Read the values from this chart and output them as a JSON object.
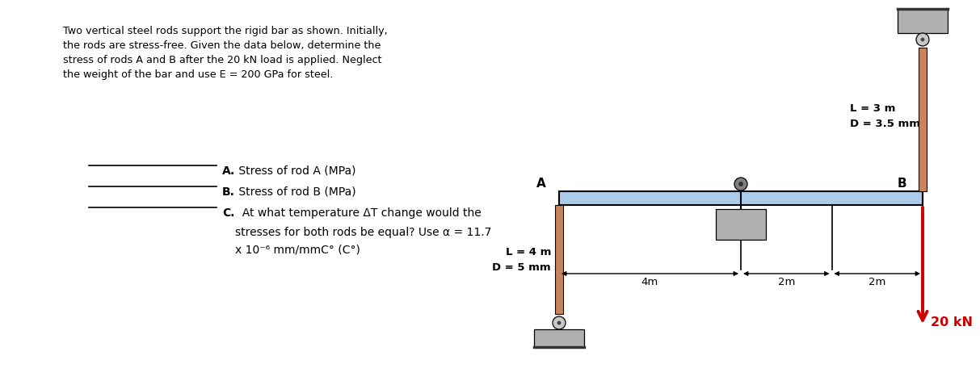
{
  "bg_color": "#ffffff",
  "title_lines": [
    "Two vertical steel rods support the rigid bar as shown. Initially,",
    "the rods are stress-free. Given the data below, determine the",
    "stress of rods A and B after the 20 kN load is applied. Neglect",
    "the weight of the bar and use E = 200 GPa for steel."
  ],
  "rod_color": "#c8845a",
  "bar_color": "#aacce8",
  "support_gray": "#a0a0a0",
  "support_dark": "#888888",
  "arrow_color": "#cc0000",
  "load_text": "20 kN",
  "load_color": "#cc0000",
  "rod_A_label": "A",
  "rod_B_label": "B",
  "label_LA": "L = 4 m",
  "label_DA": "D = 5 mm",
  "label_LB": "L = 3 m",
  "label_DB": "D = 3.5 mm",
  "dim_4m": "4m",
  "dim_2m_1": "2m",
  "dim_2m_2": "2m",
  "line_blank_color": "#000000",
  "q_A_label": "A.",
  "q_A_text": " Stress of rod A (MPa)",
  "q_B_label": "B.",
  "q_B_text": " Stress of rod B (MPa)",
  "q_C_label": "C.",
  "q_C_text": "  At what temperature ΔT change would the",
  "q_C2_text": "stresses for both rods be equal? Use α = 11.7",
  "q_C3_text": "x 10⁻⁶ mm/mmC° (C°)"
}
